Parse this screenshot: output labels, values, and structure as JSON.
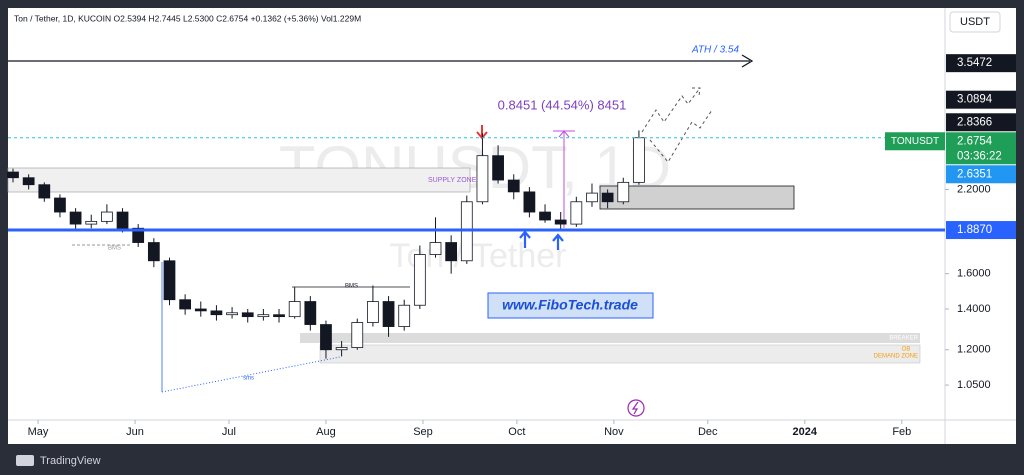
{
  "chart_data": {
    "type": "candlestick",
    "title": "Ton / Tether, 1D, KUCOIN  O2.5394  H2.7445  L2.5300  C2.6754  +0.1362 (+5.36%)  Vol1.229M",
    "currency": "USDT",
    "watermark": "TONUSDT, 1D",
    "watermark_subtitle": "Ton / Tether",
    "annotations": [
      "ATH / 3.54",
      "0.8451 (44.54%) 8451",
      "SUPPLY ZONE",
      "BMS",
      "BMS",
      "sms",
      "BREAKER",
      "OB",
      "DEMAND ZONE",
      "www.FiboTech.trade"
    ],
    "footer": "TradingView",
    "log_scale": true,
    "grid": false,
    "up_color": "#ffffff",
    "down_color": "#131722",
    "border_color": "#131722",
    "xlim": [
      -9.6,
      289.8
    ],
    "xticks": [
      {
        "value": 0,
        "label": "May"
      },
      {
        "value": 31,
        "label": "Jun"
      },
      {
        "value": 61,
        "label": "Jul"
      },
      {
        "value": 92,
        "label": "Aug"
      },
      {
        "value": 123,
        "label": "Sep"
      },
      {
        "value": 153,
        "label": "Oct"
      },
      {
        "value": 184,
        "label": "Nov"
      },
      {
        "value": 214,
        "label": "Dec"
      },
      {
        "value": 245,
        "label": "2024"
      },
      {
        "value": 276,
        "label": "Feb"
      }
    ],
    "ylim": [
      0.92,
      4.37
    ],
    "yticks": [
      {
        "value": 2.2,
        "label": "2.2000"
      },
      {
        "value": 1.6,
        "label": "1.6000"
      },
      {
        "value": 1.4,
        "label": "1.4000"
      },
      {
        "value": 1.2,
        "label": "1.2000"
      },
      {
        "value": 1.05,
        "label": "1.0500"
      }
    ],
    "price_labels": [
      {
        "value": 3.5472,
        "label": "3.5472",
        "color": "#131722"
      },
      {
        "value": 3.0894,
        "label": "3.0894",
        "color": "#131722"
      },
      {
        "value": 2.8366,
        "label": "2.8366",
        "color": "#131722"
      },
      {
        "value": 2.6754,
        "label": "2.6754",
        "color": "#1e9e57",
        "symbol": "TONUSDT",
        "countdown": "03:36:22",
        "line": "dashed"
      },
      {
        "value": 2.6351,
        "label": "2.6351",
        "color": "#2196f3"
      },
      {
        "value": 1.887,
        "label": "1.8870",
        "color": "#2962ff",
        "line": "solid"
      }
    ],
    "x": [
      -8,
      -3,
      2,
      7,
      12,
      17,
      22,
      27,
      32,
      37,
      42,
      47,
      52,
      57,
      62,
      67,
      72,
      77,
      82,
      87,
      92,
      97,
      102,
      107,
      112,
      117,
      122,
      127,
      132,
      137,
      142,
      147,
      152,
      157,
      162,
      167,
      172,
      177,
      182,
      187,
      192
    ],
    "open": [
      2.35,
      2.3,
      2.24,
      2.13,
      2.02,
      1.93,
      1.95,
      2.02,
      1.9,
      1.8,
      1.68,
      1.45,
      1.4,
      1.39,
      1.37,
      1.38,
      1.36,
      1.37,
      1.36,
      1.44,
      1.32,
      1.2,
      1.21,
      1.33,
      1.44,
      1.31,
      1.42,
      1.72,
      1.8,
      1.68,
      2.1,
      2.5,
      2.28,
      2.18,
      2.02,
      1.96,
      1.93,
      2.1,
      2.17,
      2.1,
      2.26
    ],
    "high": [
      2.38,
      2.33,
      2.26,
      2.16,
      2.05,
      2.0,
      2.08,
      2.05,
      1.93,
      1.83,
      1.7,
      1.48,
      1.44,
      1.42,
      1.41,
      1.4,
      1.4,
      1.4,
      1.52,
      1.47,
      1.34,
      1.24,
      1.35,
      1.53,
      1.47,
      1.45,
      1.78,
      1.98,
      1.85,
      2.15,
      2.72,
      2.6,
      2.33,
      2.22,
      2.08,
      2.02,
      2.14,
      2.25,
      2.2,
      2.3,
      2.75
    ],
    "low": [
      2.26,
      2.2,
      2.1,
      1.98,
      1.88,
      1.9,
      1.93,
      1.87,
      1.77,
      1.64,
      1.42,
      1.37,
      1.36,
      1.34,
      1.35,
      1.33,
      1.34,
      1.33,
      1.35,
      1.29,
      1.16,
      1.17,
      1.2,
      1.31,
      1.26,
      1.29,
      1.4,
      1.7,
      1.6,
      1.66,
      2.08,
      2.25,
      2.12,
      1.98,
      1.94,
      1.89,
      1.91,
      2.06,
      2.05,
      2.08,
      2.24
    ],
    "close": [
      2.3,
      2.24,
      2.13,
      2.02,
      1.93,
      1.95,
      2.02,
      1.9,
      1.8,
      1.68,
      1.45,
      1.4,
      1.39,
      1.37,
      1.38,
      1.36,
      1.37,
      1.36,
      1.44,
      1.32,
      1.2,
      1.21,
      1.33,
      1.44,
      1.31,
      1.42,
      1.72,
      1.8,
      1.68,
      2.1,
      2.5,
      2.28,
      2.18,
      2.02,
      1.96,
      1.93,
      2.1,
      2.17,
      2.1,
      2.26,
      2.6754
    ]
  }
}
